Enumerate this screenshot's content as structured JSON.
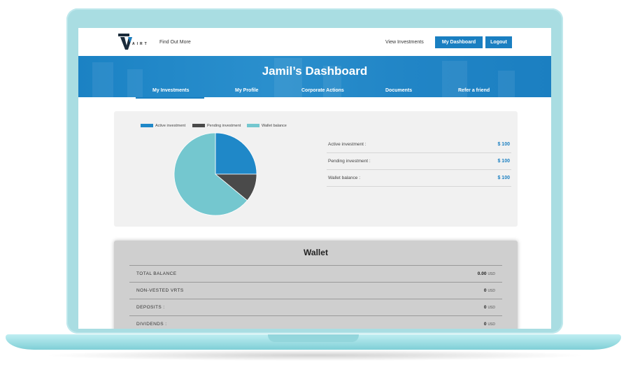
{
  "nav": {
    "logo_text": "AIRT",
    "find_out_more": "Find Out More",
    "view_investments": "View Investments",
    "my_dashboard": "My Dashboard",
    "logout": "Logout"
  },
  "banner": {
    "title": "Jamil’s Dashboard"
  },
  "tabs": [
    {
      "label": "My Investments",
      "active": true
    },
    {
      "label": "My Profile",
      "active": false
    },
    {
      "label": "Corporate Actions",
      "active": false
    },
    {
      "label": "Documents",
      "active": false
    },
    {
      "label": "Refer a friend",
      "active": false
    }
  ],
  "chart_data": {
    "type": "pie",
    "title": "",
    "legend_position": "top",
    "labels": [
      "Active investment",
      "Pending investment",
      "Wallet balance"
    ],
    "values": [
      25,
      11,
      64
    ],
    "colors": [
      "#1f88c8",
      "#4a4a4a",
      "#74c7cf"
    ]
  },
  "summary": [
    {
      "label": "Active investment :",
      "value": "$ 100"
    },
    {
      "label": "Pending investment :",
      "value": "$ 100"
    },
    {
      "label": "Wallet balance :",
      "value": "$ 100"
    }
  ],
  "wallet": {
    "title": "Wallet",
    "rows": [
      {
        "label": "TOTAL BALANCE",
        "amount": "0.00",
        "unit": "USD"
      },
      {
        "label": "NON-VESTED VRTS",
        "amount": "0",
        "unit": "USD"
      },
      {
        "label": "DEPOSITS :",
        "amount": "0",
        "unit": "USD"
      },
      {
        "label": "DIVIDENDS :",
        "amount": "0",
        "unit": "USD"
      }
    ]
  },
  "colors": {
    "primary": "#1a7fc1",
    "frame": "#a9dde2",
    "panel": "#f1f1f1",
    "wallet_panel": "#cfcfcf"
  }
}
